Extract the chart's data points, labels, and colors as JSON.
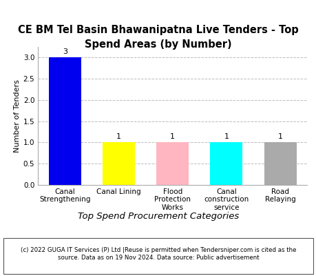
{
  "title": "CE BM Tel Basin Bhawanipatna Live Tenders - Top\nSpend Areas (by Number)",
  "categories": [
    "Canal\nStrengthening",
    "Canal Lining",
    "Flood\nProtection\nWorks",
    "Canal\nconstruction\nservice",
    "Road\nRelaying"
  ],
  "values": [
    3,
    1,
    1,
    1,
    1
  ],
  "bar_colors": [
    "#0000EE",
    "#FFFF00",
    "#FFB6C1",
    "#00FFFF",
    "#AAAAAA"
  ],
  "ylabel": "Number of Tenders",
  "xlabel": "Top Spend Procurement Categories",
  "ylim": [
    0,
    3.25
  ],
  "yticks": [
    0.0,
    0.5,
    1.0,
    1.5,
    2.0,
    2.5,
    3.0
  ],
  "background_color": "#FFFFFF",
  "plot_bg_color": "#FFFFFF",
  "grid_color": "#BBBBBB",
  "footer_text": "(c) 2022 GUGA IT Services (P) Ltd |Reuse is permitted when Tendersniper.com is cited as the\nsource. Data as on 19 Nov 2024. Data source: Public advertisement",
  "title_fontsize": 10.5,
  "ylabel_fontsize": 8,
  "xlabel_fontsize": 9.5,
  "tick_fontsize": 7.5,
  "bar_label_fontsize": 8,
  "footer_fontsize": 6.2,
  "cat_label_fontsize": 7.5
}
